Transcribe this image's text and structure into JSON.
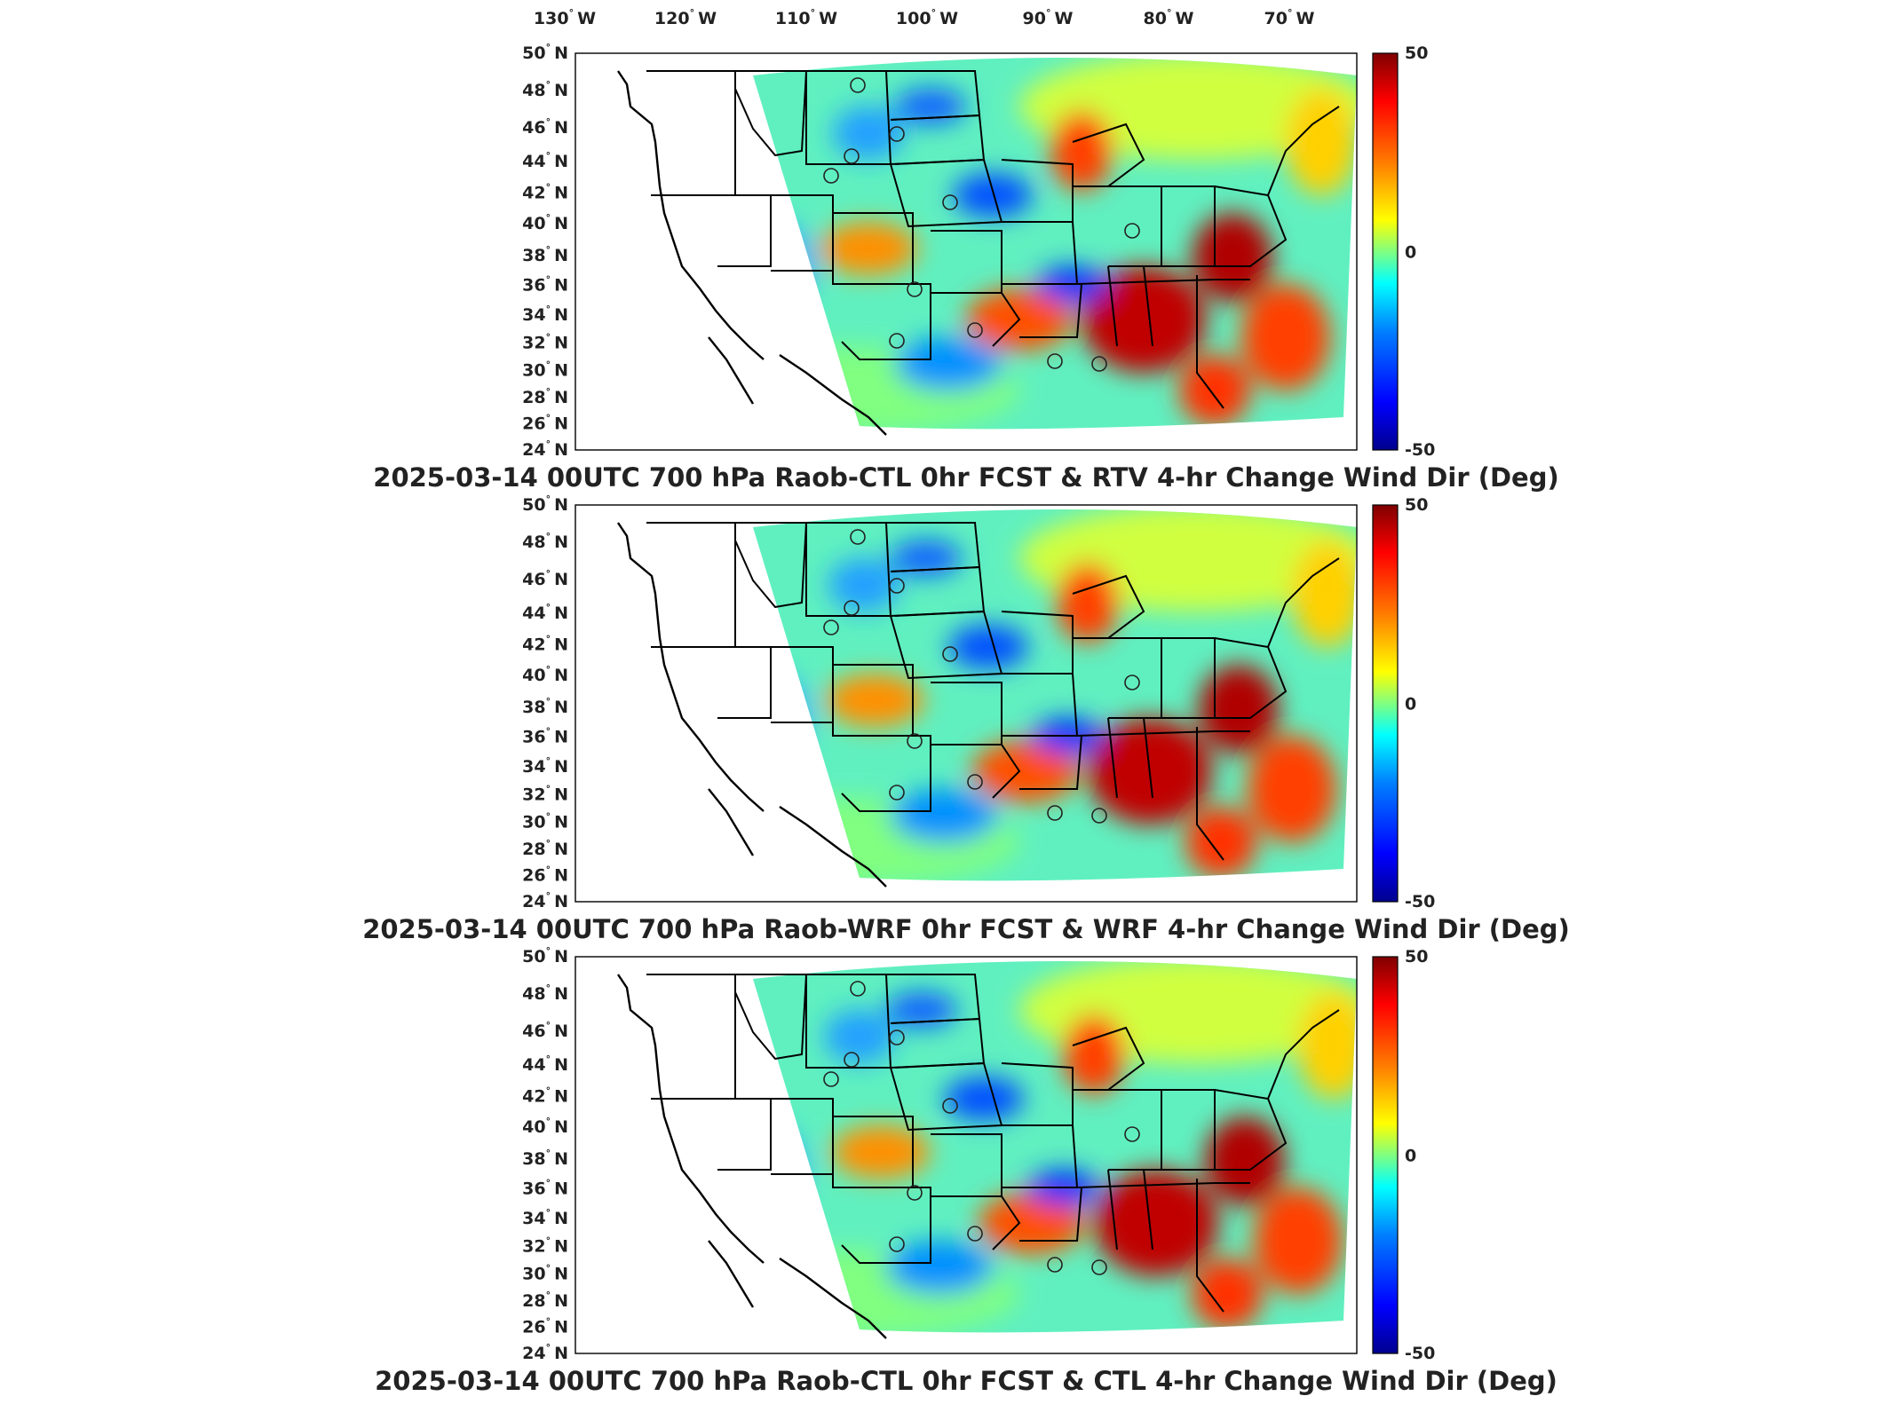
{
  "lon_labels": [
    {
      "deg": "130",
      "dir": "W"
    },
    {
      "deg": "120",
      "dir": "W"
    },
    {
      "deg": "110",
      "dir": "W"
    },
    {
      "deg": "100",
      "dir": "W"
    },
    {
      "deg": "90",
      "dir": "W"
    },
    {
      "deg": "80",
      "dir": "W"
    },
    {
      "deg": "70",
      "dir": "W"
    }
  ],
  "lat_labels": [
    {
      "deg": "50",
      "dir": "N"
    },
    {
      "deg": "48",
      "dir": "N"
    },
    {
      "deg": "46",
      "dir": "N"
    },
    {
      "deg": "44",
      "dir": "N"
    },
    {
      "deg": "42",
      "dir": "N"
    },
    {
      "deg": "40",
      "dir": "N"
    },
    {
      "deg": "38",
      "dir": "N"
    },
    {
      "deg": "36",
      "dir": "N"
    },
    {
      "deg": "34",
      "dir": "N"
    },
    {
      "deg": "32",
      "dir": "N"
    },
    {
      "deg": "30",
      "dir": "N"
    },
    {
      "deg": "28",
      "dir": "N"
    },
    {
      "deg": "26",
      "dir": "N"
    },
    {
      "deg": "24",
      "dir": "N"
    }
  ],
  "colorbar": {
    "max": "50",
    "mid": "0",
    "min": "-50",
    "colors": [
      "#00008f",
      "#0000ff",
      "#0080ff",
      "#00ffff",
      "#80ff80",
      "#ffff00",
      "#ff8000",
      "#ff0000",
      "#800000"
    ]
  },
  "panels": [
    {
      "title": "2025-03-14 00UTC 700 hPa Raob-CTL 0hr FCST & RTV 4-hr Change Wind Dir (Deg)"
    },
    {
      "title": "2025-03-14 00UTC 700 hPa Raob-WRF 0hr FCST & WRF 4-hr Change Wind Dir (Deg)"
    },
    {
      "title": "2025-03-14 00UTC 700 hPa Raob-CTL 0hr FCST & CTL 4-hr Change Wind Dir (Deg)"
    }
  ]
}
